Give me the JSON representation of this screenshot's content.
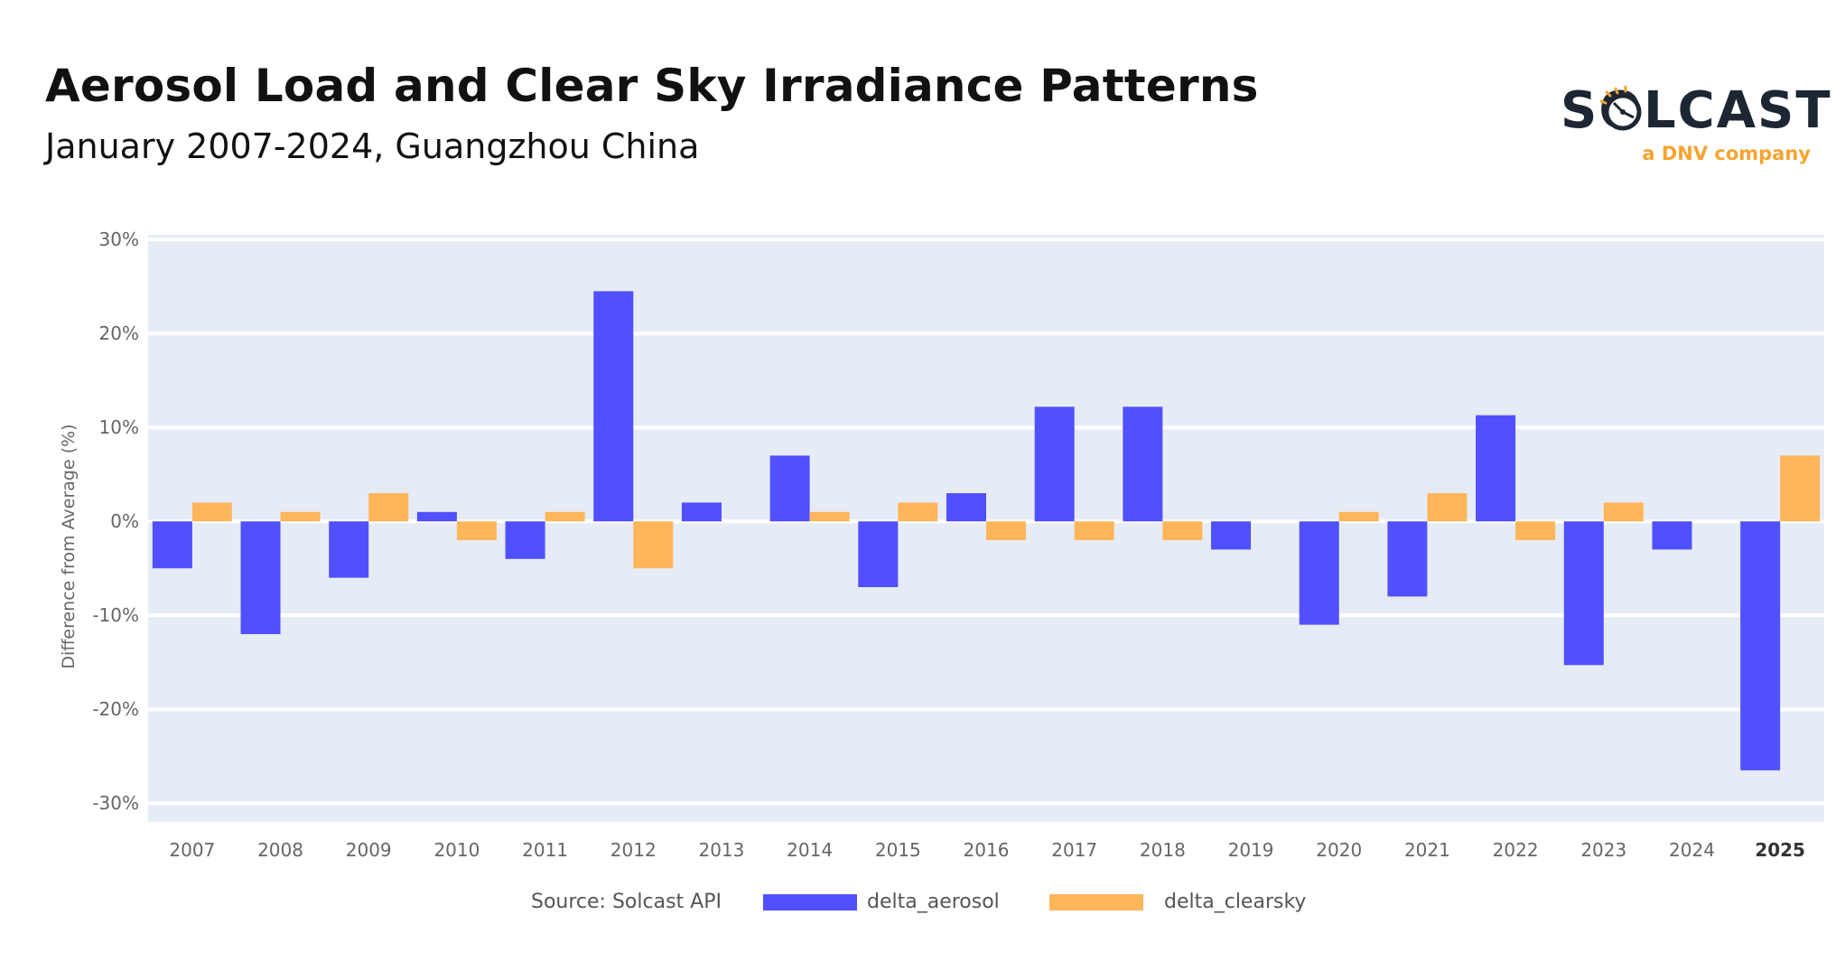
{
  "header": {
    "title": "Aerosol Load and Clear Sky Irradiance Patterns",
    "subtitle": "January 2007-2024, Guangzhou China"
  },
  "logo": {
    "wordmark": "SOLCAST",
    "tagline": "a DNV company",
    "icon": "sun-dial-icon"
  },
  "colors": {
    "aerosol": "#5050ff",
    "clearsky": "#ffb55a",
    "plot_bg": "#e6ecf6",
    "grid": "#ffffff",
    "tick_text": "#666666",
    "logo_dark": "#1d2733",
    "logo_accent": "#f5a431"
  },
  "legend": {
    "source": "Source: Solcast API",
    "placement": "bottom"
  },
  "chart_data": {
    "type": "bar",
    "ylabel": "Difference from Average (%)",
    "ylim": [
      -32,
      30.5
    ],
    "yticks": [
      30,
      20,
      10,
      0,
      -10,
      -20,
      -30
    ],
    "yticklabels": [
      "30%",
      "20%",
      "10%",
      "0%",
      "-10%",
      "-20%",
      "-30%"
    ],
    "grid": true,
    "categories": [
      "2007",
      "2008",
      "2009",
      "2010",
      "2011",
      "2012",
      "2013",
      "2014",
      "2015",
      "2016",
      "2017",
      "2018",
      "2019",
      "2020",
      "2021",
      "2022",
      "2023",
      "2024",
      "2025"
    ],
    "bold_category": "2025",
    "series": [
      {
        "name": "delta_aerosol",
        "values": [
          -5,
          -12,
          -6,
          1,
          -4,
          24.5,
          2,
          7,
          -7,
          3,
          12.2,
          12.2,
          -3,
          -11,
          -8,
          11.3,
          -15.3,
          -3,
          -26.5
        ]
      },
      {
        "name": "delta_clearsky",
        "values": [
          2,
          1,
          3,
          -2,
          1,
          -5,
          0,
          1,
          2,
          -2,
          -2,
          -2,
          0,
          1,
          3,
          -2,
          2,
          0,
          7
        ]
      }
    ]
  }
}
